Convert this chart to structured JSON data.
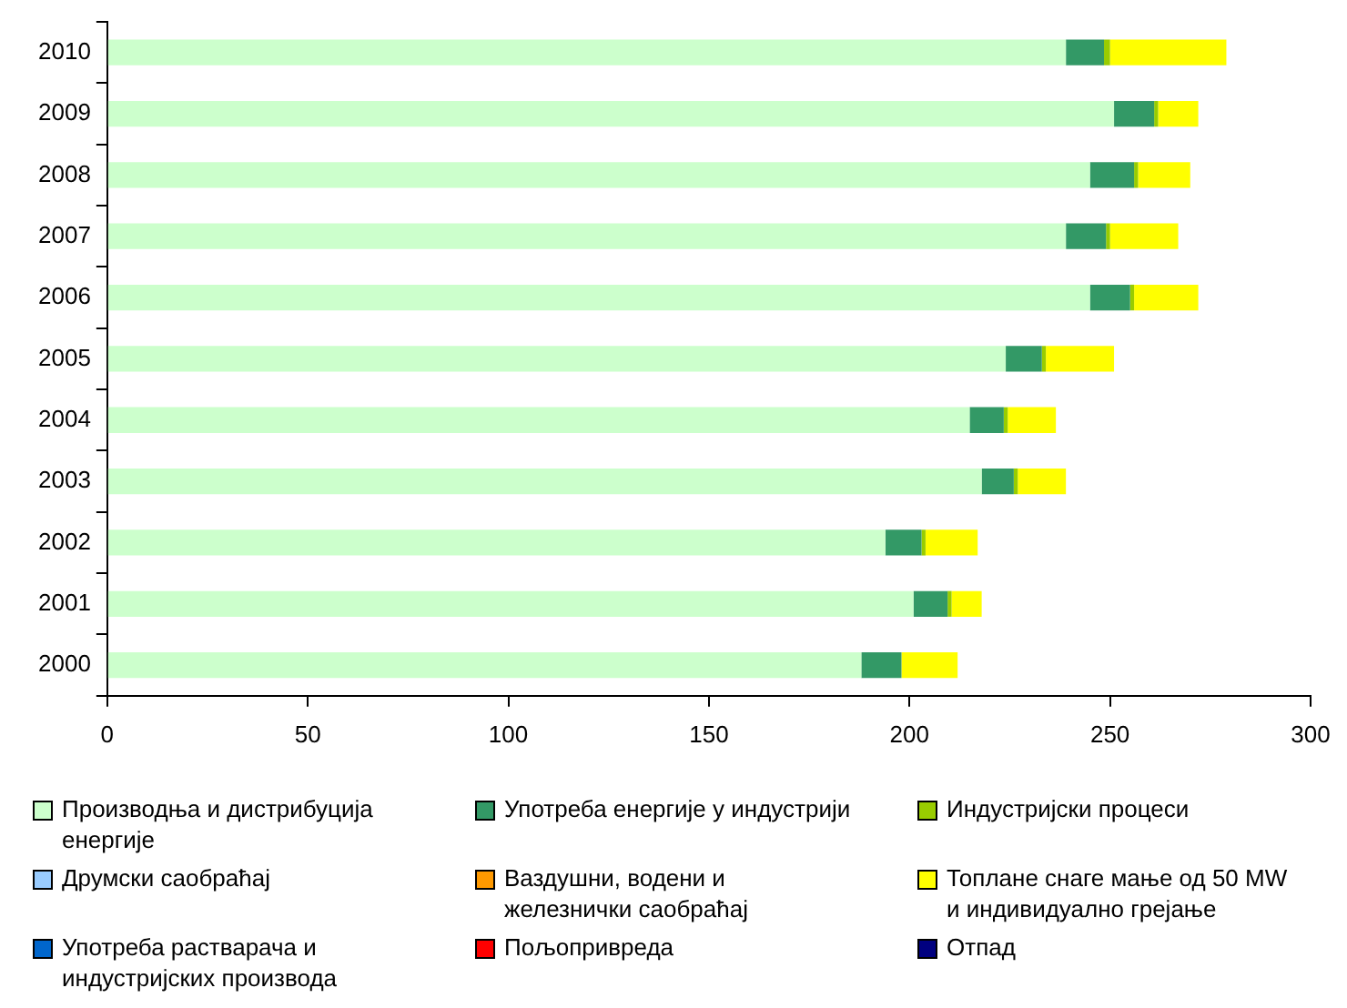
{
  "chart_data": {
    "type": "bar",
    "orientation": "horizontal",
    "stacked": true,
    "categories": [
      "2010",
      "2009",
      "2008",
      "2007",
      "2006",
      "2005",
      "2004",
      "2003",
      "2002",
      "2001",
      "2000"
    ],
    "series": [
      {
        "name": "Производња и дистрибуција енергије",
        "color": "#ccffcc",
        "values": [
          239,
          251,
          245,
          239,
          245,
          224,
          215,
          218,
          194,
          201,
          188
        ]
      },
      {
        "name": "Употреба енергије у индустрији",
        "color": "#339966",
        "values": [
          9.5,
          10,
          11,
          10,
          10,
          9,
          8.5,
          8,
          9,
          8.5,
          10
        ]
      },
      {
        "name": "Индустријски процеси",
        "color": "#99cc00",
        "values": [
          1.5,
          1,
          1,
          1,
          1,
          1,
          1,
          1,
          1,
          1,
          null
        ]
      },
      {
        "name": "Друмски саобраћај",
        "color": "#99ccff",
        "values": [
          null,
          null,
          null,
          null,
          null,
          null,
          null,
          null,
          null,
          null,
          null
        ]
      },
      {
        "name": "Ваздушни, водени и железнички саобраћај",
        "color": "#ff9900",
        "values": [
          null,
          null,
          null,
          null,
          null,
          null,
          null,
          null,
          null,
          null,
          null
        ]
      },
      {
        "name": "Топлане снаге мање од 50 MW и индивидуално грејање",
        "color": "#ffff00",
        "values": [
          29,
          10,
          13,
          17,
          16,
          17,
          12,
          12,
          13,
          7.5,
          14
        ]
      },
      {
        "name": "Употреба растварача и индустријских производа",
        "color": "#0066cc",
        "values": [
          null,
          null,
          null,
          null,
          null,
          null,
          null,
          null,
          null,
          null,
          null
        ]
      },
      {
        "name": "Пољопривреда",
        "color": "#ff0000",
        "values": [
          null,
          null,
          null,
          null,
          null,
          null,
          null,
          null,
          null,
          null,
          null
        ]
      },
      {
        "name": "Отпад",
        "color": "#000080",
        "values": [
          null,
          null,
          null,
          null,
          null,
          null,
          null,
          null,
          null,
          null,
          null
        ]
      }
    ],
    "xlim": [
      0,
      300
    ],
    "xticks": [
      0,
      50,
      100,
      150,
      200,
      250,
      300
    ],
    "grid": false,
    "legend": "bottom"
  }
}
